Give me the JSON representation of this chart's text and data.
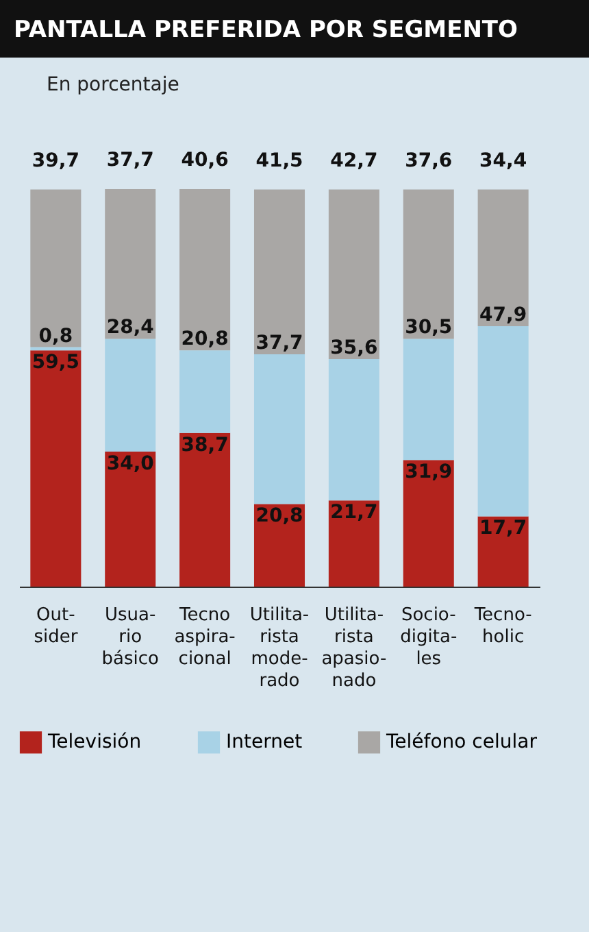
{
  "chart_data": {
    "type": "bar",
    "title": "PANTALLA PREFERIDA POR SEGMENTO",
    "subtitle": "En porcentaje",
    "categories": [
      "Out-\nsider",
      "Usua-\nrio\nbásico",
      "Tecno\naspira-\ncional",
      "Utilita-\nrista\nmode-\nrado",
      "Utilita-\nrista\napasio-\nnado",
      "Socio-\ndigita-\nles",
      "Tecno-\nholic"
    ],
    "stacked": true,
    "legend": "bottom",
    "tick_labels": "x",
    "series": [
      {
        "name": "Televisión",
        "color": "#b3231d",
        "values": [
          59.5,
          34.0,
          38.7,
          20.8,
          21.7,
          31.9,
          17.7
        ],
        "value_labels": [
          "59,5",
          "34,0",
          "38,7",
          "20,8",
          "21,7",
          "31,9",
          "17,7"
        ]
      },
      {
        "name": "Internet",
        "color": "#a8d2e6",
        "values": [
          0.8,
          28.4,
          20.8,
          37.7,
          35.6,
          30.5,
          47.9
        ],
        "value_labels": [
          "0,8",
          "28,4",
          "20,8",
          "37,7",
          "35,6",
          "30,5",
          "47,9"
        ]
      },
      {
        "name": "Teléfono celular",
        "color": "#a9a7a5",
        "values": [
          39.7,
          37.7,
          40.6,
          41.5,
          42.7,
          37.6,
          34.4
        ],
        "value_labels": [
          "39,7",
          "37,7",
          "40,6",
          "41,5",
          "42,7",
          "37,6",
          "34,4"
        ]
      }
    ]
  }
}
